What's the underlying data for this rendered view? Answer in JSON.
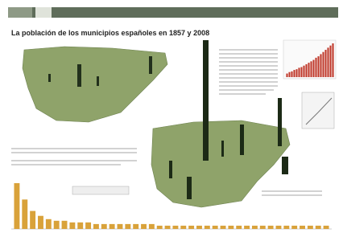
{
  "title": "La población de los municipios españoles en 1857 y 2008",
  "growth_chart": {
    "values": [
      5,
      7,
      8,
      10,
      11,
      13,
      14,
      16,
      18,
      20,
      22,
      24,
      27,
      29,
      32,
      35,
      38,
      41,
      44,
      47
    ],
    "color": "#c0392b"
  },
  "ranking_chart": {
    "values": [
      28,
      18,
      11,
      8,
      6,
      5,
      5,
      4,
      4,
      4,
      3,
      3,
      3,
      3,
      3,
      3,
      3,
      3,
      2,
      2,
      2,
      2,
      2,
      2,
      2,
      2,
      2,
      2,
      2,
      2,
      2,
      2,
      2,
      2,
      2,
      2,
      2,
      2,
      2,
      2
    ],
    "color": "#d9a23a"
  }
}
